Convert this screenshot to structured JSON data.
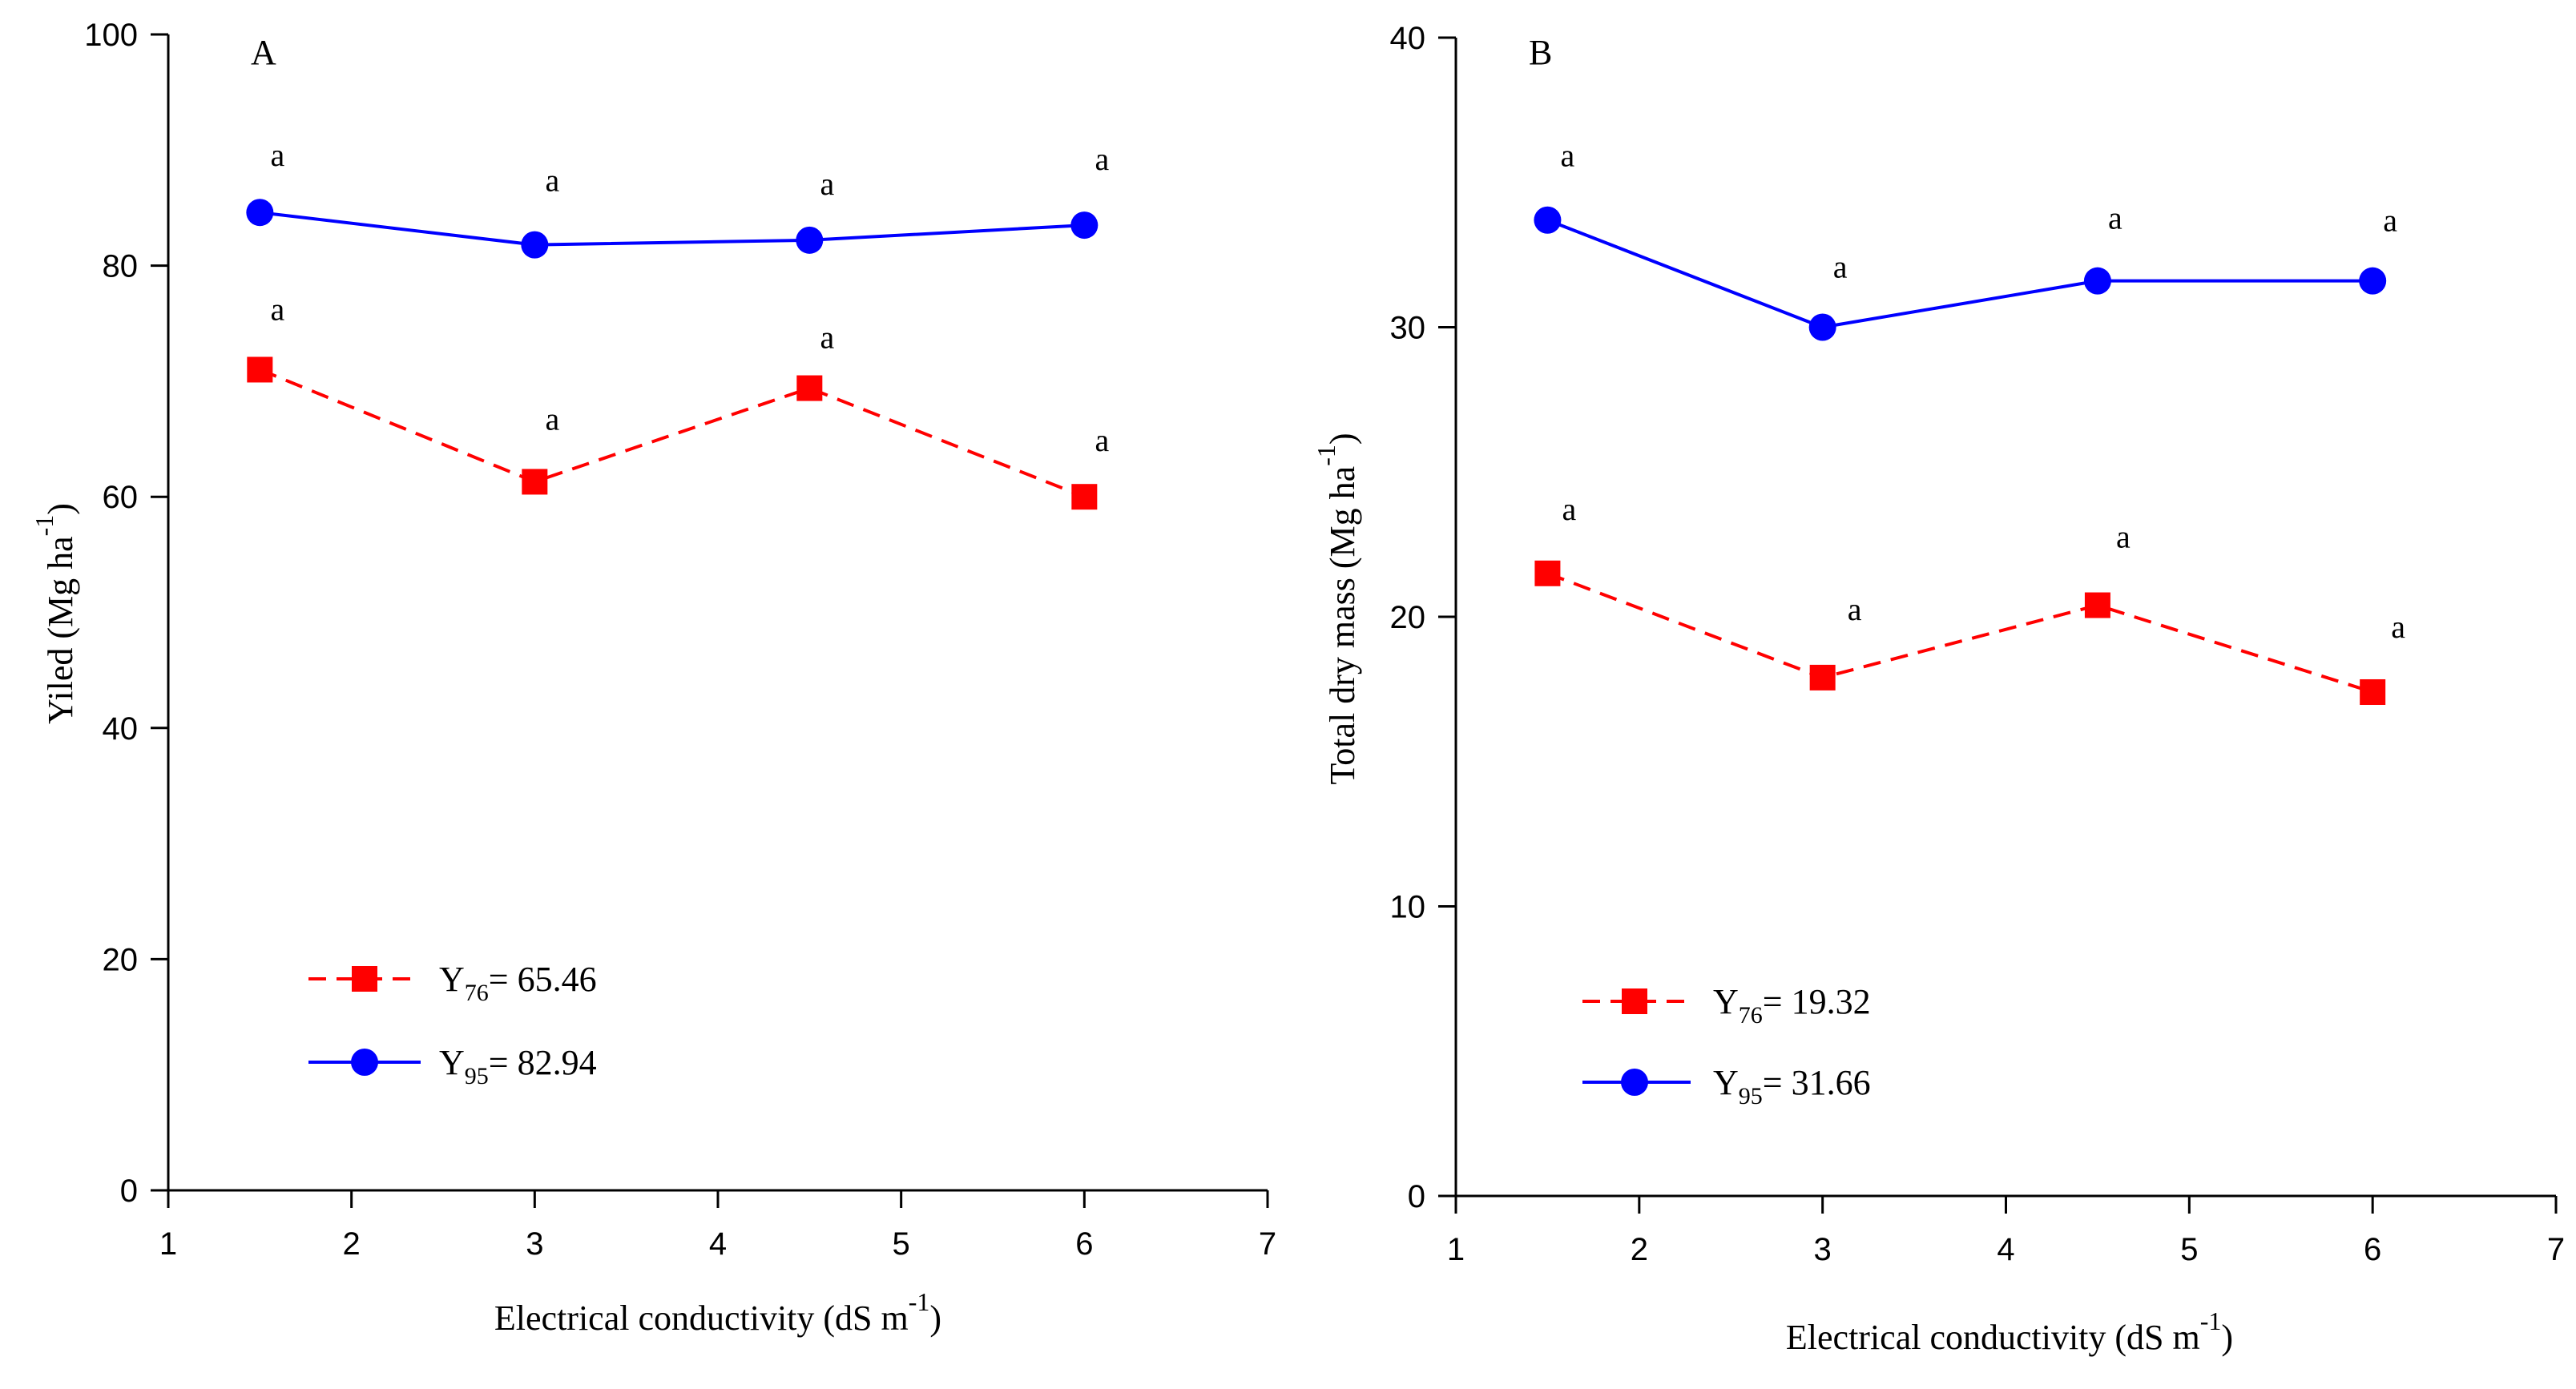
{
  "chart_data": [
    {
      "type": "line",
      "panel_label": "A",
      "xlabel": "Electrical conductivity (dS m",
      "xlabel_sup": "-1",
      "xlabel_close": ")",
      "ylabel": "Yiled (Mg ha",
      "ylabel_sup": "-1",
      "ylabel_close": ")",
      "xlim": [
        1,
        7
      ],
      "ylim": [
        0,
        100
      ],
      "xticks": [
        "1",
        "2",
        "3",
        "4",
        "5",
        "6",
        "7"
      ],
      "yticks": [
        "0",
        "20",
        "40",
        "60",
        "80",
        "100"
      ],
      "x": [
        1.5,
        3,
        4.5,
        6
      ],
      "series": [
        {
          "name": "Y76",
          "legend_main": "Y",
          "legend_sub": "76",
          "legend_value": "= 65.46",
          "marker": "square",
          "line_style": "dashed",
          "color": "#ff0000",
          "values": [
            71,
            61.3,
            69.4,
            60
          ],
          "labels": [
            "a",
            "a",
            "a",
            "a"
          ]
        },
        {
          "name": "Y95",
          "legend_main": "Y",
          "legend_sub": "95",
          "legend_value": "= 82.94",
          "marker": "circle",
          "line_style": "solid",
          "color": "#0000ff",
          "values": [
            84.6,
            81.8,
            82.2,
            83.5
          ],
          "labels": [
            "a",
            "a",
            "a",
            "a"
          ]
        }
      ]
    },
    {
      "type": "line",
      "panel_label": "B",
      "xlabel": "Electrical conductivity (dS m",
      "xlabel_sup": "-1",
      "xlabel_close": ")",
      "ylabel": "Total dry mass (Mg ha",
      "ylabel_sup": "-1",
      "ylabel_close": ")",
      "xlim": [
        1,
        7
      ],
      "ylim": [
        0,
        40
      ],
      "xticks": [
        "1",
        "2",
        "3",
        "4",
        "5",
        "6",
        "7"
      ],
      "yticks": [
        "0",
        "10",
        "20",
        "30",
        "40"
      ],
      "x": [
        1.5,
        3,
        4.5,
        6
      ],
      "series": [
        {
          "name": "Y76",
          "legend_main": "Y",
          "legend_sub": "76",
          "legend_value": "= 19.32",
          "marker": "square",
          "line_style": "dashed",
          "color": "#ff0000",
          "values": [
            21.5,
            17.9,
            20.4,
            17.4
          ],
          "labels": [
            "a",
            "a",
            "a",
            "a"
          ]
        },
        {
          "name": "Y95",
          "legend_main": "Y",
          "legend_sub": "95",
          "legend_value": "= 31.66",
          "marker": "circle",
          "line_style": "solid",
          "color": "#0000ff",
          "values": [
            33.7,
            30,
            31.6,
            31.6
          ],
          "labels": [
            "a",
            "a",
            "a",
            "a"
          ]
        }
      ]
    }
  ]
}
